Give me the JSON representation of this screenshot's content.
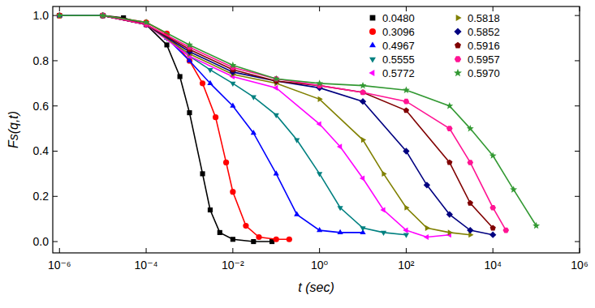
{
  "chart_data": {
    "type": "line",
    "x_label": "t (sec)",
    "y_label": "Fs(q,t)",
    "log": "x",
    "legend": "upper-right",
    "xlim": [
      7e-07,
      1000000
    ],
    "xticks": [
      {
        "value": 1e-06,
        "label": "10⁻⁶"
      },
      {
        "value": 0.0001,
        "label": "10⁻⁴"
      },
      {
        "value": 0.01,
        "label": "10⁻²"
      },
      {
        "value": 1,
        "label": "10⁰"
      },
      {
        "value": 100,
        "label": "10²"
      },
      {
        "value": 10000,
        "label": "10⁴"
      },
      {
        "value": 1000000,
        "label": "10⁶"
      }
    ],
    "ylim": [
      -0.05,
      1.04
    ],
    "yticks": [
      {
        "value": 0,
        "label": "0.0"
      },
      {
        "value": 0.2,
        "label": "0.2"
      },
      {
        "value": 0.4,
        "label": "0.4"
      },
      {
        "value": 0.6,
        "label": "0.6"
      },
      {
        "value": 0.8,
        "label": "0.8"
      },
      {
        "value": 1,
        "label": "1.0"
      }
    ],
    "series": [
      {
        "name": "0.0480",
        "color": "#000000",
        "marker": "square",
        "x": [
          1e-06,
          1e-05,
          3e-05,
          0.0001,
          0.0003,
          0.0006,
          0.001,
          0.002,
          0.003,
          0.005,
          0.01,
          0.03,
          0.08
        ],
        "values": [
          1.0,
          1.0,
          0.99,
          0.96,
          0.87,
          0.73,
          0.57,
          0.3,
          0.14,
          0.04,
          0.01,
          0.0,
          0.0
        ]
      },
      {
        "name": "0.3096",
        "color": "#ff0000",
        "marker": "circle",
        "x": [
          1e-06,
          1e-05,
          0.0001,
          0.0003,
          0.001,
          0.002,
          0.004,
          0.007,
          0.01,
          0.02,
          0.04,
          0.1,
          0.2
        ],
        "values": [
          1.0,
          1.0,
          0.97,
          0.92,
          0.8,
          0.7,
          0.55,
          0.35,
          0.22,
          0.07,
          0.02,
          0.01,
          0.01
        ]
      },
      {
        "name": "0.4967",
        "color": "#0000ff",
        "marker": "triangle-up",
        "x": [
          1e-06,
          1e-05,
          0.0001,
          0.0003,
          0.001,
          0.003,
          0.01,
          0.03,
          0.1,
          0.3,
          1,
          3,
          10
        ],
        "values": [
          1.0,
          1.0,
          0.96,
          0.9,
          0.8,
          0.7,
          0.6,
          0.48,
          0.3,
          0.12,
          0.05,
          0.04,
          0.04
        ]
      },
      {
        "name": "0.5555",
        "color": "#008080",
        "marker": "triangle-down",
        "x": [
          1e-05,
          0.0001,
          0.0003,
          0.001,
          0.003,
          0.01,
          0.03,
          0.1,
          0.3,
          1,
          3,
          10,
          30,
          100
        ],
        "values": [
          1.0,
          0.96,
          0.9,
          0.82,
          0.76,
          0.7,
          0.64,
          0.56,
          0.45,
          0.3,
          0.15,
          0.06,
          0.04,
          0.03
        ]
      },
      {
        "name": "0.5772",
        "color": "#ff00ff",
        "marker": "triangle-left",
        "x": [
          1e-05,
          0.0001,
          0.001,
          0.01,
          0.1,
          1,
          3,
          10,
          30,
          100,
          300,
          1000
        ],
        "values": [
          1.0,
          0.96,
          0.82,
          0.73,
          0.68,
          0.52,
          0.42,
          0.28,
          0.14,
          0.05,
          0.02,
          0.03
        ]
      },
      {
        "name": "0.5818",
        "color": "#808000",
        "marker": "triangle-right",
        "x": [
          1e-05,
          0.0001,
          0.001,
          0.01,
          0.1,
          1,
          10,
          30,
          100,
          300,
          1000,
          3000
        ],
        "values": [
          1.0,
          0.96,
          0.83,
          0.74,
          0.7,
          0.63,
          0.45,
          0.3,
          0.15,
          0.06,
          0.04,
          0.03
        ]
      },
      {
        "name": "0.5852",
        "color": "#000080",
        "marker": "diamond",
        "x": [
          1e-05,
          0.0001,
          0.001,
          0.01,
          0.1,
          1,
          10,
          100,
          300,
          1000,
          3000,
          10000
        ],
        "values": [
          1.0,
          0.96,
          0.84,
          0.75,
          0.71,
          0.68,
          0.62,
          0.4,
          0.25,
          0.12,
          0.05,
          0.03
        ]
      },
      {
        "name": "0.5916",
        "color": "#800000",
        "marker": "pentagon",
        "x": [
          1e-05,
          0.0001,
          0.001,
          0.01,
          0.1,
          1,
          10,
          100,
          1000,
          3000,
          10000
        ],
        "values": [
          1.0,
          0.96,
          0.85,
          0.76,
          0.71,
          0.69,
          0.66,
          0.58,
          0.35,
          0.17,
          0.06
        ]
      },
      {
        "name": "0.5957",
        "color": "#ff1493",
        "marker": "hexagon",
        "x": [
          1e-05,
          0.0001,
          0.001,
          0.01,
          0.1,
          1,
          10,
          100,
          1000,
          3000,
          10000,
          20000
        ],
        "values": [
          1.0,
          0.96,
          0.86,
          0.77,
          0.72,
          0.69,
          0.66,
          0.62,
          0.5,
          0.35,
          0.15,
          0.05
        ]
      },
      {
        "name": "0.5970",
        "color": "#339933",
        "marker": "star",
        "x": [
          1e-06,
          1e-05,
          0.0001,
          0.001,
          0.01,
          0.1,
          1,
          10,
          100,
          1000,
          3000,
          10000,
          30000,
          100000
        ],
        "values": [
          1.0,
          1.0,
          0.97,
          0.87,
          0.78,
          0.72,
          0.7,
          0.69,
          0.67,
          0.6,
          0.5,
          0.38,
          0.23,
          0.07
        ]
      }
    ]
  }
}
